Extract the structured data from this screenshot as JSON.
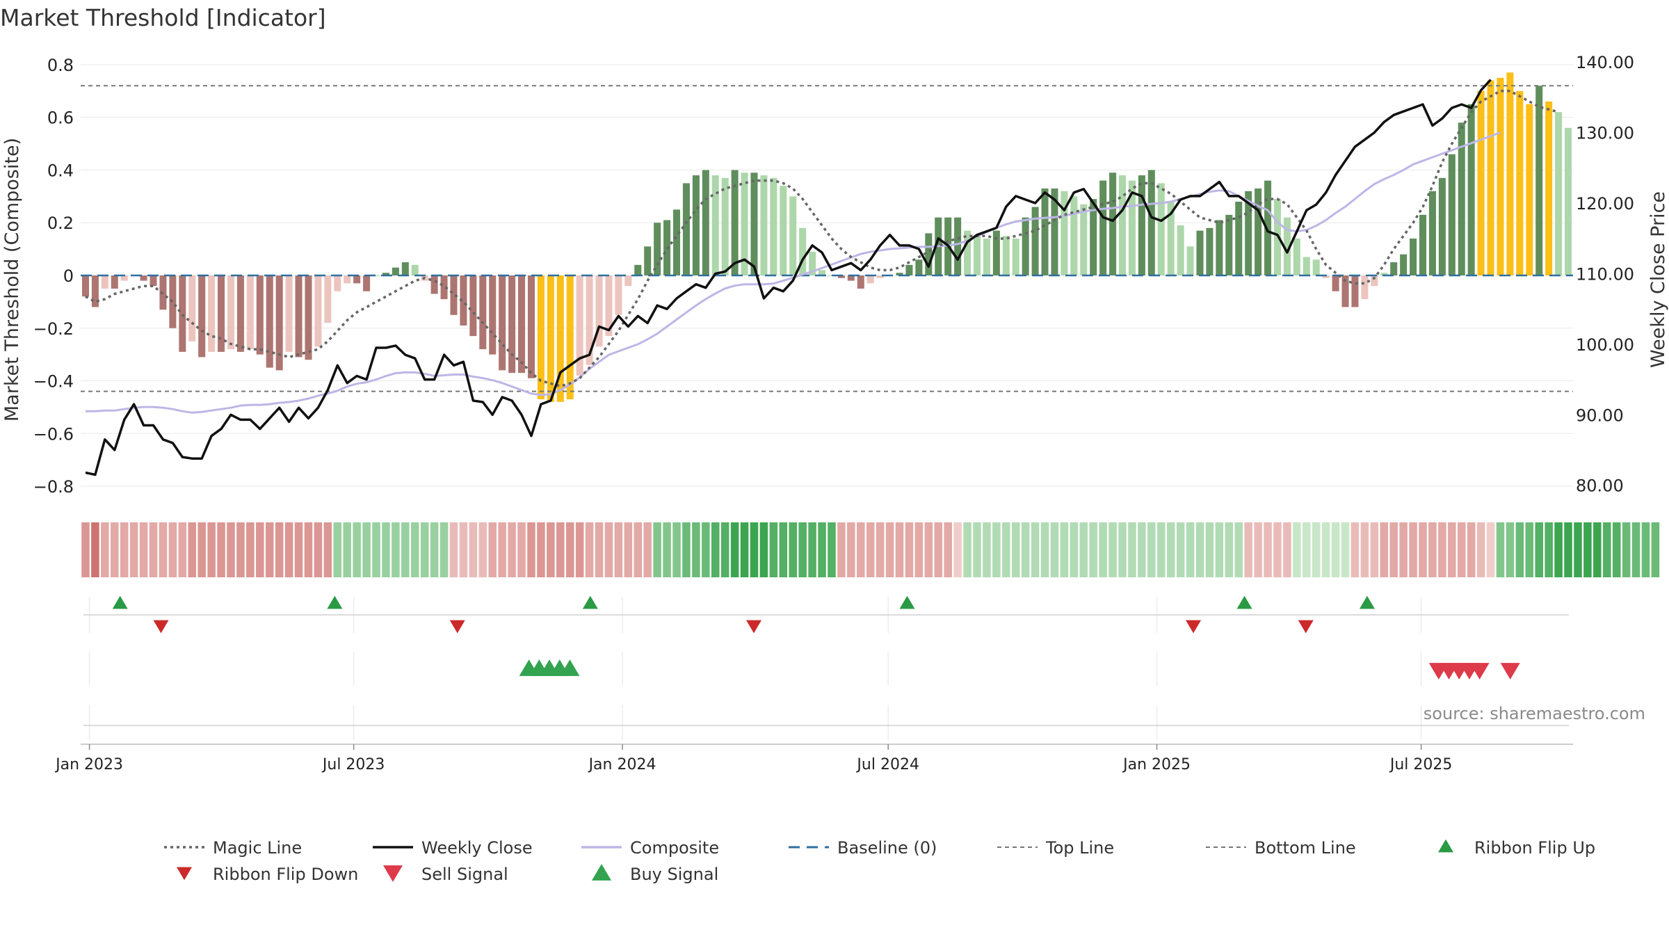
{
  "chart_data": {
    "type": "bar",
    "title": "Market Threshold [Indicator]",
    "ylabel_left": "Market Threshold (Composite)",
    "ylabel_right": "Weekly Close Price",
    "source": "source: sharemaestro.com",
    "ylim_left": [
      -0.85,
      0.85
    ],
    "ylim_right": [
      78,
      141.5
    ],
    "yticks_left": [
      {
        "value": 0.8,
        "label": "0.8"
      },
      {
        "value": 0.6,
        "label": "0.6"
      },
      {
        "value": 0.4,
        "label": "0.4"
      },
      {
        "value": 0.2,
        "label": "0.2"
      },
      {
        "value": 0,
        "label": "0"
      },
      {
        "value": -0.2,
        "label": "−0.2"
      },
      {
        "value": -0.4,
        "label": "−0.4"
      },
      {
        "value": -0.6,
        "label": "−0.6"
      },
      {
        "value": -0.8,
        "label": "−0.8"
      }
    ],
    "yticks_right": [
      {
        "value": 140,
        "label": "140.00"
      },
      {
        "value": 130,
        "label": "130.00"
      },
      {
        "value": 120,
        "label": "120.00"
      },
      {
        "value": 110,
        "label": "110.00"
      },
      {
        "value": 100,
        "label": "100.00"
      },
      {
        "value": 90,
        "label": "90.00"
      },
      {
        "value": 80,
        "label": "80.00"
      }
    ],
    "x_start": "2022-12-26",
    "x_end": "2025-10-13",
    "xticks": [
      {
        "date": "2023-01-01",
        "label": "Jan 2023"
      },
      {
        "date": "2023-07-01",
        "label": "Jul 2023"
      },
      {
        "date": "2024-01-01",
        "label": "Jan 2024"
      },
      {
        "date": "2024-07-01",
        "label": "Jul 2024"
      },
      {
        "date": "2025-01-01",
        "label": "Jan 2025"
      },
      {
        "date": "2025-07-01",
        "label": "Jul 2025"
      }
    ],
    "top_line": 0.72,
    "bottom_line": -0.44,
    "composite_bars": [
      -0.08,
      -0.12,
      -0.05,
      -0.05,
      -0.02,
      0,
      -0.02,
      -0.04,
      -0.13,
      -0.2,
      -0.29,
      -0.25,
      -0.31,
      -0.29,
      -0.29,
      -0.28,
      -0.29,
      -0.28,
      -0.3,
      -0.35,
      -0.36,
      -0.29,
      -0.31,
      -0.32,
      -0.27,
      -0.18,
      -0.06,
      -0.03,
      -0.03,
      -0.06,
      0,
      0.01,
      0.03,
      0.05,
      0.04,
      -0.02,
      -0.07,
      -0.09,
      -0.15,
      -0.19,
      -0.23,
      -0.28,
      -0.3,
      -0.36,
      -0.37,
      -0.37,
      -0.39,
      -0.47,
      -0.48,
      -0.48,
      -0.47,
      -0.38,
      -0.34,
      -0.27,
      -0.23,
      -0.15,
      -0.04,
      0.04,
      0.11,
      0.2,
      0.21,
      0.25,
      0.35,
      0.38,
      0.4,
      0.38,
      0.37,
      0.4,
      0.39,
      0.39,
      0.38,
      0.37,
      0.34,
      0.3,
      0.18,
      0.09,
      0.02,
      0,
      -0.01,
      -0.02,
      -0.05,
      -0.03,
      -0.01,
      0,
      0.01,
      0.04,
      0.06,
      0.16,
      0.22,
      0.22,
      0.22,
      0.17,
      0.15,
      0.14,
      0.17,
      0.15,
      0.14,
      0.22,
      0.26,
      0.33,
      0.33,
      0.32,
      0.3,
      0.27,
      0.29,
      0.36,
      0.39,
      0.38,
      0.36,
      0.38,
      0.4,
      0.35,
      0.28,
      0.19,
      0.11,
      0.17,
      0.18,
      0.21,
      0.23,
      0.28,
      0.32,
      0.33,
      0.36,
      0.29,
      0.22,
      0.14,
      0.07,
      0.06,
      -0.01,
      -0.06,
      -0.12,
      -0.12,
      -0.09,
      -0.04,
      0.01,
      0.05,
      0.08,
      0.14,
      0.23,
      0.32,
      0.37,
      0.46,
      0.58,
      0.65,
      0.7,
      0.74,
      0.75,
      0.77,
      0.7,
      0.65,
      0.72,
      0.66,
      0.62,
      0.56
    ],
    "bar_colors": "a light-red shade fills most negative weeks with darker red where momentum grows; light green fills positive weeks with dark green where momentum grows; gold marks extreme weeks",
    "gold_bars": [
      47,
      48,
      49,
      50,
      144,
      145,
      146,
      147,
      148,
      149,
      151
    ],
    "weekly_close": [
      81.8,
      81.5,
      86.5,
      85.0,
      89.3,
      91.5,
      88.5,
      88.5,
      86.5,
      86.0,
      84.0,
      83.8,
      83.8,
      87.0,
      88.0,
      90.0,
      89.3,
      89.3,
      88.0,
      89.5,
      91.0,
      89.0,
      91.0,
      89.5,
      91.0,
      93.5,
      97.0,
      94.5,
      95.5,
      95.0,
      99.5,
      99.5,
      99.8,
      98.5,
      98.0,
      95.0,
      95.0,
      98.5,
      97.0,
      97.5,
      92.0,
      91.8,
      90.0,
      92.5,
      92.0,
      90.0,
      87.0,
      91.5,
      92.0,
      96.0,
      97.0,
      98.0,
      98.5,
      102.5,
      102.0,
      104.0,
      102.5,
      104.0,
      103.0,
      105.5,
      105.0,
      106.5,
      107.5,
      108.5,
      108.0,
      110.0,
      110.3,
      111.5,
      112.0,
      111.0,
      106.5,
      108.0,
      107.5,
      109.0,
      112.0,
      114.0,
      113.0,
      110.5,
      111.0,
      111.5,
      110.5,
      112.0,
      114.0,
      115.5,
      114.0,
      114.0,
      113.5,
      111.0,
      115.0,
      114.0,
      112.0,
      114.5,
      115.5,
      116.0,
      116.5,
      119.5,
      121.0,
      120.5,
      120.0,
      121.5,
      120.5,
      119.0,
      121.5,
      122.0,
      120.0,
      118.0,
      117.5,
      119.0,
      121.5,
      121.0,
      118.0,
      117.5,
      118.5,
      120.5,
      121.0,
      121.0,
      122.0,
      123.0,
      121.0,
      121.0,
      120.0,
      119.0,
      116.0,
      115.5,
      113.0,
      116.0,
      119.0,
      119.8,
      121.5,
      124.0,
      126.0,
      128.0,
      129.0,
      130.0,
      131.5,
      132.5,
      133.0,
      133.5,
      134.0,
      131.0,
      132.0,
      133.5,
      134.0,
      133.5,
      136.0,
      137.5
    ],
    "magic_line": [
      -0.08,
      -0.1,
      -0.09,
      -0.07,
      -0.06,
      -0.05,
      -0.04,
      -0.04,
      -0.07,
      -0.1,
      -0.15,
      -0.18,
      -0.21,
      -0.23,
      -0.24,
      -0.26,
      -0.27,
      -0.28,
      -0.28,
      -0.29,
      -0.3,
      -0.31,
      -0.3,
      -0.29,
      -0.28,
      -0.25,
      -0.21,
      -0.17,
      -0.14,
      -0.12,
      -0.1,
      -0.08,
      -0.06,
      -0.04,
      -0.02,
      -0.01,
      -0.02,
      -0.04,
      -0.07,
      -0.1,
      -0.14,
      -0.18,
      -0.22,
      -0.26,
      -0.3,
      -0.33,
      -0.37,
      -0.4,
      -0.41,
      -0.42,
      -0.41,
      -0.39,
      -0.35,
      -0.31,
      -0.26,
      -0.21,
      -0.15,
      -0.09,
      -0.02,
      0.04,
      0.1,
      0.15,
      0.2,
      0.25,
      0.29,
      0.31,
      0.33,
      0.34,
      0.35,
      0.36,
      0.36,
      0.36,
      0.35,
      0.33,
      0.29,
      0.24,
      0.19,
      0.14,
      0.1,
      0.07,
      0.05,
      0.03,
      0.02,
      0.02,
      0.03,
      0.05,
      0.07,
      0.09,
      0.11,
      0.13,
      0.14,
      0.15,
      0.15,
      0.15,
      0.14,
      0.14,
      0.15,
      0.16,
      0.17,
      0.19,
      0.21,
      0.23,
      0.24,
      0.25,
      0.26,
      0.27,
      0.28,
      0.3,
      0.33,
      0.35,
      0.35,
      0.33,
      0.31,
      0.28,
      0.25,
      0.22,
      0.21,
      0.2,
      0.21,
      0.22,
      0.24,
      0.27,
      0.29,
      0.29,
      0.27,
      0.22,
      0.17,
      0.1,
      0.04,
      0.01,
      -0.02,
      -0.03,
      -0.03,
      -0.01,
      0.04,
      0.1,
      0.15,
      0.2,
      0.26,
      0.34,
      0.43,
      0.5,
      0.56,
      0.62,
      0.66,
      0.68,
      0.7,
      0.7,
      0.68,
      0.66,
      0.64,
      0.63,
      0.62
    ],
    "composite_line": [
      90.5,
      90.5,
      90.6,
      90.6,
      90.8,
      91.0,
      91.1,
      91.1,
      91.0,
      90.8,
      90.5,
      90.3,
      90.4,
      90.6,
      90.8,
      91.0,
      91.3,
      91.4,
      91.4,
      91.5,
      91.7,
      91.8,
      92.0,
      92.3,
      92.7,
      93.0,
      93.4,
      94.0,
      94.4,
      94.6,
      95.0,
      95.5,
      95.9,
      96.0,
      96.0,
      95.8,
      95.5,
      95.6,
      95.7,
      95.7,
      95.4,
      95.2,
      94.9,
      94.5,
      94.0,
      93.5,
      93.0,
      92.8,
      92.9,
      93.5,
      94.3,
      95.3,
      96.5,
      97.5,
      98.5,
      99.0,
      99.5,
      100.0,
      100.7,
      101.5,
      102.5,
      103.5,
      104.5,
      105.5,
      106.4,
      107.2,
      107.9,
      108.3,
      108.5,
      108.5,
      108.5,
      108.6,
      109.0,
      109.4,
      109.9,
      110.3,
      110.8,
      111.3,
      111.8,
      112.3,
      112.8,
      113.1,
      113.3,
      113.5,
      113.6,
      113.7,
      113.8,
      113.8,
      113.9,
      114.0,
      114.2,
      114.7,
      115.3,
      115.9,
      116.5,
      117.0,
      117.4,
      117.6,
      117.8,
      117.9,
      118.0,
      118.2,
      118.5,
      118.8,
      119.0,
      119.2,
      119.3,
      119.5,
      119.6,
      119.8,
      119.9,
      120.0,
      120.2,
      120.6,
      120.9,
      121.3,
      121.6,
      121.8,
      121.7,
      121.0,
      120.3,
      119.6,
      119.0,
      117.3,
      116.2,
      116.0,
      116.2,
      116.8,
      117.6,
      118.6,
      119.5,
      120.6,
      121.7,
      122.7,
      123.4,
      124.0,
      124.7,
      125.5,
      126.0,
      126.5,
      127.0,
      127.5,
      128.0,
      128.5,
      129.0,
      129.5,
      130.0
    ],
    "ribbon": [
      -0.5,
      -0.7,
      -0.4,
      -0.4,
      -0.4,
      -0.4,
      -0.4,
      -0.4,
      -0.4,
      -0.4,
      -0.4,
      -0.5,
      -0.5,
      -0.5,
      -0.5,
      -0.5,
      -0.5,
      -0.5,
      -0.5,
      -0.5,
      -0.5,
      -0.5,
      -0.5,
      -0.5,
      -0.5,
      -0.5,
      0.4,
      0.4,
      0.4,
      0.4,
      0.4,
      0.4,
      0.4,
      0.4,
      0.4,
      0.4,
      0.4,
      0.4,
      -0.3,
      -0.3,
      -0.3,
      -0.3,
      -0.4,
      -0.4,
      -0.4,
      -0.4,
      -0.5,
      -0.5,
      -0.5,
      -0.5,
      -0.5,
      -0.5,
      -0.4,
      -0.4,
      -0.4,
      -0.4,
      -0.4,
      -0.4,
      -0.4,
      0.5,
      0.5,
      0.5,
      0.6,
      0.6,
      0.6,
      0.7,
      0.7,
      0.8,
      0.8,
      0.8,
      0.8,
      0.7,
      0.7,
      0.7,
      0.7,
      0.7,
      0.7,
      0.7,
      -0.4,
      -0.4,
      -0.4,
      -0.4,
      -0.4,
      -0.4,
      -0.4,
      -0.4,
      -0.4,
      -0.4,
      -0.4,
      -0.4,
      -0.2,
      0.3,
      0.3,
      0.3,
      0.3,
      0.3,
      0.3,
      0.3,
      0.3,
      0.3,
      0.3,
      0.3,
      0.3,
      0.3,
      0.3,
      0.3,
      0.3,
      0.3,
      0.3,
      0.3,
      0.3,
      0.3,
      0.3,
      0.3,
      0.3,
      0.3,
      0.3,
      0.3,
      0.3,
      0.3,
      -0.3,
      -0.3,
      -0.3,
      -0.3,
      -0.3,
      0.2,
      0.2,
      0.2,
      0.2,
      0.2,
      0.2,
      -0.3,
      -0.3,
      -0.3,
      -0.4,
      -0.4,
      -0.4,
      -0.4,
      -0.4,
      -0.4,
      -0.4,
      -0.4,
      -0.4,
      -0.4,
      -0.3,
      -0.2,
      0.5,
      0.5,
      0.6,
      0.6,
      0.7,
      0.7,
      0.8,
      0.8,
      0.8,
      0.8,
      0.8,
      0.7,
      0.7,
      0.6,
      0.6,
      0.6,
      0.6
    ],
    "ribbon_flip_up_dates": [
      "2023-01-22",
      "2023-06-18",
      "2023-12-10",
      "2024-07-14",
      "2025-03-02",
      "2025-05-25"
    ],
    "ribbon_flip_down_dates": [
      "2023-02-19",
      "2023-09-10",
      "2024-03-31",
      "2025-01-26",
      "2025-04-13"
    ],
    "buy_signal_dates": [
      "2023-10-29",
      "2023-11-05",
      "2023-11-12",
      "2023-11-19",
      "2023-11-26"
    ],
    "sell_signal_dates": [
      "2025-07-13",
      "2025-07-20",
      "2025-07-27",
      "2025-08-03",
      "2025-08-10",
      "2025-08-31"
    ],
    "colors": {
      "bar_light_red": "#ecc4be",
      "bar_dark_red": "#ad7571",
      "bar_light_green": "#add7aa",
      "bar_dark_green": "#5f8e5c",
      "bar_gold": "#fbbf18",
      "weekly_close": "#111111",
      "magic_line": "#666666",
      "composite_line": "#bdb6e6",
      "baseline": "#2f6f9f",
      "threshold_lines": "#777777",
      "flip_up": "#2a9a45",
      "flip_down": "#cc2a2a",
      "sell": "#dd3a4a",
      "buy": "#33a34f"
    },
    "legend": {
      "placement": "bottom",
      "items": [
        {
          "label": "Magic Line",
          "kind": "dotted"
        },
        {
          "label": "Weekly Close",
          "kind": "solid-black"
        },
        {
          "label": "Composite",
          "kind": "solid-lavender"
        },
        {
          "label": "Baseline (0)",
          "kind": "dashed-blue"
        },
        {
          "label": "Top Line",
          "kind": "dashed-gray"
        },
        {
          "label": "Bottom Line",
          "kind": "dashed-gray"
        },
        {
          "label": "Ribbon Flip Up",
          "kind": "triangle-up"
        },
        {
          "label": "Ribbon Flip Down",
          "kind": "triangle-down"
        },
        {
          "label": "Sell Signal",
          "kind": "triangle-down-red"
        },
        {
          "label": "Buy Signal",
          "kind": "triangle-up-green"
        }
      ]
    }
  }
}
